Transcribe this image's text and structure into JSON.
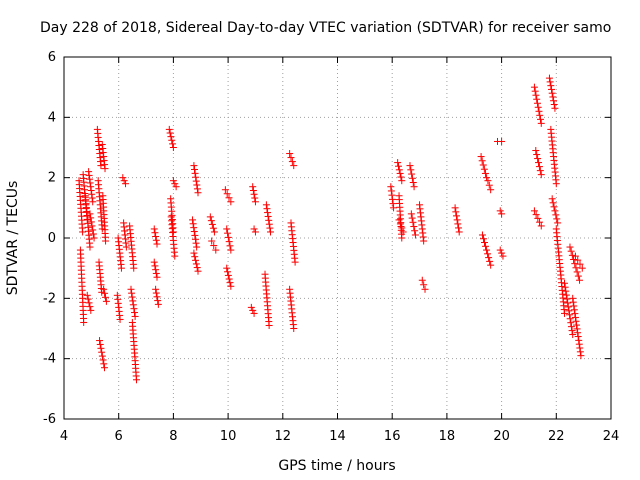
{
  "chart_data": {
    "type": "scatter",
    "title": "Day 228 of 2018, Sidereal Day-to-day VTEC variation (SDTVAR) for receiver samo",
    "xlabel": "GPS time / hours",
    "ylabel": "SDTVAR / TECUs",
    "xlim": [
      4,
      24
    ],
    "ylim": [
      -6,
      6
    ],
    "xticks": [
      "4",
      "6",
      "8",
      "10",
      "12",
      "14",
      "16",
      "18",
      "20",
      "22",
      "24"
    ],
    "yticks": [
      "-6",
      "-4",
      "-2",
      "0",
      "2",
      "4",
      "6"
    ],
    "grid": true,
    "marker": "+",
    "color": "#ff0000",
    "series": [
      {
        "name": "SDTVAR",
        "segments": [
          [
            4.55,
            4.68,
            1.9,
            0.2
          ],
          [
            4.6,
            4.72,
            -0.4,
            -2.8
          ],
          [
            4.7,
            4.85,
            2.1,
            0.6
          ],
          [
            4.78,
            4.95,
            1.4,
            -0.3
          ],
          [
            4.85,
            4.98,
            -1.9,
            -2.4
          ],
          [
            4.9,
            5.05,
            2.2,
            1.2
          ],
          [
            4.95,
            5.1,
            0.8,
            0.0
          ],
          [
            5.22,
            5.35,
            3.6,
            2.4
          ],
          [
            5.25,
            5.4,
            1.9,
            0.3
          ],
          [
            5.28,
            5.38,
            -0.8,
            -1.8
          ],
          [
            5.3,
            5.48,
            -3.4,
            -4.3
          ],
          [
            5.4,
            5.5,
            3.1,
            2.3
          ],
          [
            5.42,
            5.52,
            1.4,
            -0.1
          ],
          [
            5.45,
            5.55,
            -1.7,
            -2.1
          ],
          [
            5.95,
            6.05,
            -1.9,
            -2.7
          ],
          [
            5.98,
            6.1,
            0.0,
            -1.0
          ],
          [
            6.15,
            6.25,
            2.0,
            1.8
          ],
          [
            6.18,
            6.28,
            0.5,
            -0.3
          ],
          [
            6.4,
            6.55,
            0.4,
            -1.0
          ],
          [
            6.45,
            6.6,
            -1.7,
            -2.6
          ],
          [
            6.5,
            6.65,
            -2.8,
            -4.7
          ],
          [
            7.3,
            7.4,
            0.3,
            -0.2
          ],
          [
            7.3,
            7.4,
            -0.8,
            -1.3
          ],
          [
            7.35,
            7.45,
            -1.7,
            -2.2
          ],
          [
            7.85,
            8.0,
            3.6,
            3.0
          ],
          [
            7.9,
            8.0,
            1.3,
            0.2
          ],
          [
            7.92,
            8.05,
            0.7,
            -0.6
          ],
          [
            8.0,
            8.1,
            1.9,
            1.7
          ],
          [
            8.75,
            8.9,
            2.4,
            1.5
          ],
          [
            8.7,
            8.85,
            0.6,
            -0.3
          ],
          [
            8.75,
            8.9,
            -0.5,
            -1.1
          ],
          [
            9.35,
            9.5,
            0.7,
            0.2
          ],
          [
            9.4,
            9.55,
            -0.1,
            -0.4
          ],
          [
            9.9,
            10.1,
            1.6,
            1.2
          ],
          [
            9.95,
            10.1,
            0.3,
            -0.4
          ],
          [
            9.95,
            10.1,
            -1.0,
            -1.6
          ],
          [
            10.9,
            11.0,
            1.7,
            1.2
          ],
          [
            10.95,
            11.0,
            0.3,
            0.2
          ],
          [
            10.85,
            10.95,
            -2.3,
            -2.5
          ],
          [
            11.4,
            11.55,
            1.1,
            0.2
          ],
          [
            11.35,
            11.5,
            -1.2,
            -2.9
          ],
          [
            12.25,
            12.4,
            2.8,
            2.4
          ],
          [
            12.3,
            12.45,
            0.5,
            -0.8
          ],
          [
            12.25,
            12.4,
            -1.7,
            -3.0
          ],
          [
            15.95,
            16.05,
            1.7,
            1.0
          ],
          [
            16.2,
            16.35,
            2.5,
            1.9
          ],
          [
            16.25,
            16.35,
            1.4,
            0.0
          ],
          [
            16.25,
            16.4,
            0.6,
            0.2
          ],
          [
            16.65,
            16.8,
            2.4,
            1.7
          ],
          [
            16.7,
            16.85,
            0.8,
            0.1
          ],
          [
            17.0,
            17.15,
            1.1,
            -0.1
          ],
          [
            17.1,
            17.2,
            -1.4,
            -1.7
          ],
          [
            18.3,
            18.45,
            1.0,
            0.2
          ],
          [
            19.25,
            19.45,
            2.7,
            2.0
          ],
          [
            19.5,
            19.6,
            1.9,
            1.6
          ],
          [
            19.3,
            19.6,
            0.1,
            -0.9
          ],
          [
            19.85,
            20.0,
            3.2,
            3.2
          ],
          [
            19.95,
            20.0,
            0.9,
            0.8
          ],
          [
            19.95,
            20.05,
            -0.4,
            -0.6
          ],
          [
            21.2,
            21.45,
            5.0,
            3.8
          ],
          [
            21.25,
            21.45,
            2.9,
            2.1
          ],
          [
            21.2,
            21.45,
            0.9,
            0.4
          ],
          [
            21.75,
            21.95,
            5.3,
            4.3
          ],
          [
            21.8,
            22.0,
            3.6,
            1.8
          ],
          [
            21.85,
            22.05,
            1.3,
            0.5
          ],
          [
            22.0,
            22.3,
            0.3,
            -2.5
          ],
          [
            22.3,
            22.6,
            -1.5,
            -3.2
          ],
          [
            22.5,
            22.85,
            -0.3,
            -1.4
          ],
          [
            22.6,
            22.9,
            -2.0,
            -3.9
          ],
          [
            22.7,
            22.95,
            -0.6,
            -1.0
          ]
        ]
      }
    ]
  }
}
